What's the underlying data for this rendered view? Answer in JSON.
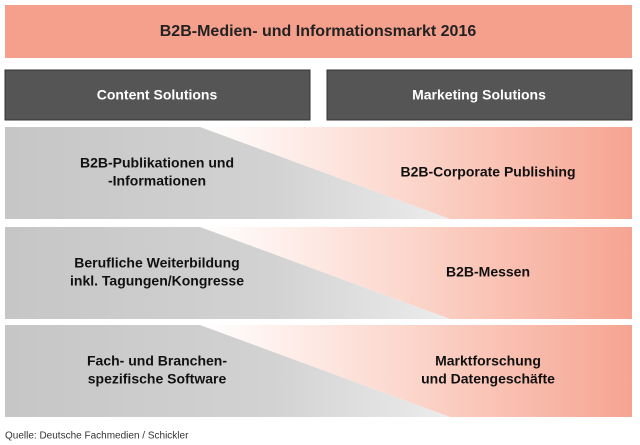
{
  "header": {
    "title": "B2B-Medien- und Informationsmarkt 2016"
  },
  "columns": [
    "Content Solutions",
    "Marketing Solutions"
  ],
  "rows": [
    {
      "left": [
        "B2B-Publikationen und",
        "-Informationen"
      ],
      "right": [
        "B2B-Corporate Publishing"
      ]
    },
    {
      "left": [
        "Berufliche Weiterbildung",
        "inkl. Tagungen/Kongresse"
      ],
      "right": [
        "B2B-Messen"
      ]
    },
    {
      "left": [
        "Fach- und Branchen-",
        "spezifische Software"
      ],
      "right": [
        "Marktforschung",
        "und Datengeschäfte"
      ]
    }
  ],
  "source": "Quelle: Deutsche Fachmedien / Schickler"
}
